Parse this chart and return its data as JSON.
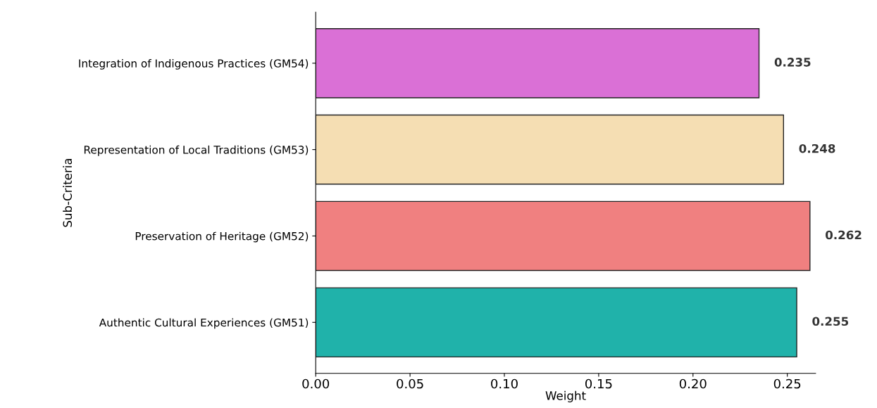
{
  "chart_data": {
    "type": "bar",
    "orientation": "horizontal",
    "xlabel": "Weight",
    "ylabel": "Sub-Criteria",
    "categories": [
      "Integration of Indigenous Practices (GM54)",
      "Representation of Local Traditions (GM53)",
      "Preservation of Heritage (GM52)",
      "Authentic Cultural Experiences (GM51)"
    ],
    "values": [
      0.235,
      0.248,
      0.262,
      0.255
    ],
    "colors": [
      "#da70d6",
      "#f5deb3",
      "#f08080",
      "#20b2aa"
    ],
    "xlim": [
      0,
      0.265
    ],
    "xticks": [
      {
        "value": 0,
        "label": "0.00"
      },
      {
        "value": 0.05,
        "label": "0.05"
      },
      {
        "value": 0.1,
        "label": "0.10"
      },
      {
        "value": 0.15,
        "label": "0.15"
      },
      {
        "value": 0.2,
        "label": "0.20"
      },
      {
        "value": 0.25,
        "label": "0.25"
      }
    ],
    "data_labels": true,
    "grid": false,
    "legend": false
  }
}
